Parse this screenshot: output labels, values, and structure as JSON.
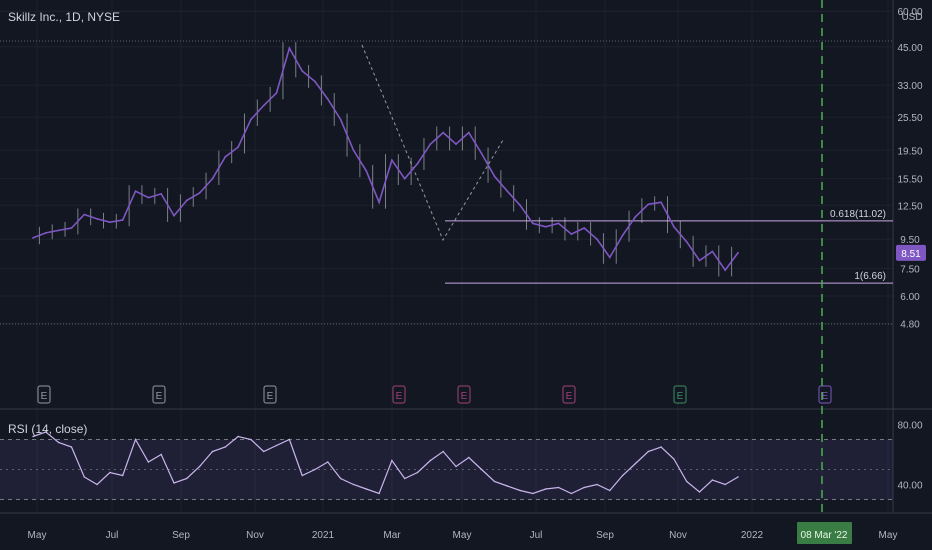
{
  "header": {
    "symbol_name": "Skillz Inc.",
    "interval": "1D",
    "exchange": "NYSE"
  },
  "rsi_label": "RSI (14, close)",
  "colors": {
    "background": "#131722",
    "candle": "#d1d4dc",
    "line": "#7e57c2",
    "fib": "#c9a8e6",
    "earnings_gray": "#9598a1",
    "earnings_pink": "#a0427a",
    "earnings_green": "#3a8f62",
    "earnings_purple": "#7e57c2",
    "date_marker": "#4caf50"
  },
  "chart_data": {
    "type": "line",
    "title": "Skillz Inc., 1D, NYSE",
    "y_axis": {
      "scale": "log",
      "unit": "USD",
      "ticks": [
        "60.00",
        "45.00",
        "33.00",
        "25.50",
        "19.50",
        "15.50",
        "12.50",
        "9.50",
        "7.50",
        "6.00",
        "4.80"
      ]
    },
    "x_axis": {
      "ticks": [
        "May",
        "Jul",
        "Sep",
        "Nov",
        "2021",
        "Mar",
        "May",
        "Jul",
        "Sep",
        "Nov",
        "2022",
        "Mar",
        "May"
      ]
    },
    "series": [
      {
        "values": [
          9.6,
          10.0,
          10.2,
          10.4,
          11.6,
          11.2,
          10.9,
          11.1,
          14.0,
          13.3,
          13.7,
          11.5,
          13.0,
          13.8,
          15.5,
          18.5,
          20.0,
          25.0,
          28.0,
          31.0,
          44.5,
          37.0,
          34.0,
          29.5,
          25.0,
          19.5,
          16.5,
          12.8,
          18.0,
          15.5,
          17.5,
          20.5,
          22.5,
          20.5,
          22.5,
          19.0,
          15.8,
          14.0,
          12.5,
          10.8,
          10.5,
          10.8,
          9.9,
          10.4,
          9.5,
          8.2,
          9.8,
          11.4,
          12.6,
          12.8,
          10.5,
          9.3,
          8.0,
          8.6,
          7.4,
          8.51
        ]
      }
    ],
    "last_price": "8.51",
    "fib_levels": [
      {
        "label": "0.618(11.02)",
        "value": 11.02
      },
      {
        "label": "1(6.66)",
        "value": 6.66
      }
    ],
    "earnings": [
      {
        "label": "E",
        "style": "gray"
      },
      {
        "label": "E",
        "style": "gray"
      },
      {
        "label": "E",
        "style": "gray"
      },
      {
        "label": "E",
        "style": "pink"
      },
      {
        "label": "E",
        "style": "pink"
      },
      {
        "label": "E",
        "style": "pink"
      },
      {
        "label": "E",
        "style": "green"
      },
      {
        "label": "E",
        "style": "purple"
      }
    ],
    "rsi": {
      "ticks": [
        "80.00",
        "40.00"
      ],
      "overbought": 70,
      "oversold": 30,
      "values": [
        72,
        75,
        68,
        65,
        45,
        40,
        48,
        46,
        70,
        55,
        60,
        41,
        44,
        52,
        62,
        65,
        72,
        70,
        62,
        66,
        70,
        46,
        50,
        55,
        44,
        40,
        37,
        34,
        56,
        44,
        48,
        56,
        62,
        52,
        58,
        50,
        42,
        39,
        36,
        34,
        37,
        38,
        34,
        38,
        40,
        36,
        46,
        54,
        62,
        65,
        57,
        42,
        35,
        43,
        40,
        45
      ]
    },
    "marker_date": "08 Mar '22"
  }
}
